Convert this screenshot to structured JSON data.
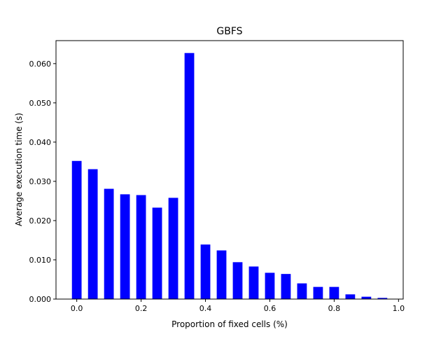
{
  "chart_data": {
    "type": "bar",
    "title": "GBFS",
    "xlabel": "Proportion of fixed cells (%)",
    "ylabel": "Average execution time (s)",
    "x": [
      0.0,
      0.05,
      0.1,
      0.15,
      0.2,
      0.25,
      0.3,
      0.35,
      0.4,
      0.45,
      0.5,
      0.55,
      0.6,
      0.65,
      0.7,
      0.75,
      0.8,
      0.85,
      0.9,
      0.95
    ],
    "values": [
      0.0352,
      0.0331,
      0.0281,
      0.0267,
      0.0265,
      0.0233,
      0.0258,
      0.0627,
      0.0139,
      0.0124,
      0.0094,
      0.0083,
      0.0067,
      0.0064,
      0.004,
      0.0031,
      0.0031,
      0.0012,
      0.0006,
      0.0003
    ],
    "bar_width": 0.03,
    "xlim": [
      -0.0645,
      1.0145
    ],
    "ylim": [
      0,
      0.06586
    ],
    "xticks": [
      0.0,
      0.2,
      0.4,
      0.6,
      0.8,
      1.0
    ],
    "xtick_labels": [
      "0.0",
      "0.2",
      "0.4",
      "0.6",
      "0.8",
      "1.0"
    ],
    "yticks": [
      0.0,
      0.01,
      0.02,
      0.03,
      0.04,
      0.05,
      0.06
    ],
    "ytick_labels": [
      "0.000",
      "0.010",
      "0.020",
      "0.030",
      "0.040",
      "0.050",
      "0.060"
    ],
    "grid": false,
    "legend": "none",
    "bar_color": "#0000ff"
  }
}
